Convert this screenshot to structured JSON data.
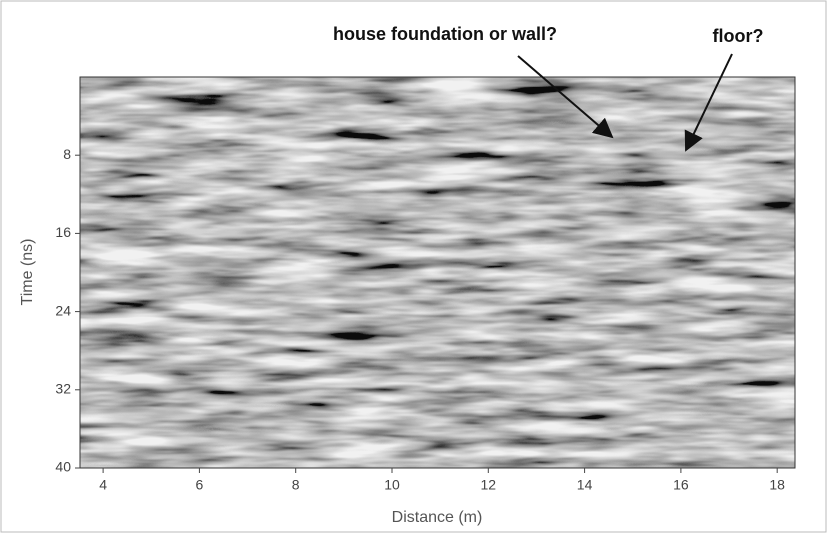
{
  "chart_data": {
    "type": "radargram",
    "annotations": [
      "house foundation or wall?",
      "floor?"
    ],
    "xlabel": "Distance (m)",
    "ylabel": "Time (ns)",
    "xlim": [
      3.52,
      18.37
    ],
    "xticks": [
      4,
      6,
      8,
      10,
      12,
      14,
      16,
      18
    ],
    "ylim": [
      0,
      40
    ],
    "yticks": [
      8,
      16,
      24,
      32,
      40
    ],
    "y_reversed": true
  }
}
